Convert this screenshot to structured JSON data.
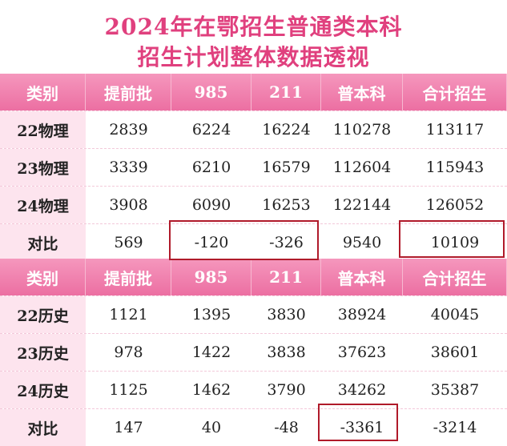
{
  "title": {
    "line1": "2024年在鄂招生普通类本科",
    "line2": "招生计划整体数据透视"
  },
  "table_physics": {
    "headers": [
      "类别",
      "提前批",
      "985",
      "211",
      "普本科",
      "合计招生"
    ],
    "rows": [
      [
        "22物理",
        "2839",
        "6224",
        "16224",
        "110278",
        "113117"
      ],
      [
        "23物理",
        "3339",
        "6210",
        "16579",
        "112604",
        "115943"
      ],
      [
        "24物理",
        "3908",
        "6090",
        "16253",
        "122144",
        "126052"
      ],
      [
        "对比",
        "569",
        "-120",
        "-326",
        "9540",
        "10109"
      ]
    ]
  },
  "table_history": {
    "headers": [
      "类别",
      "提前批",
      "985",
      "211",
      "普本科",
      "合计招生"
    ],
    "rows": [
      [
        "22历史",
        "1121",
        "1395",
        "3830",
        "38924",
        "40045"
      ],
      [
        "23历史",
        "978",
        "1422",
        "3838",
        "37623",
        "38601"
      ],
      [
        "24历史",
        "1125",
        "1462",
        "3790",
        "34262",
        "35387"
      ],
      [
        "对比",
        "147",
        "40",
        "-48",
        "-3361",
        "-3214"
      ]
    ]
  },
  "colors": {
    "title": "#e0407e",
    "header_bg": "#ec6fa2",
    "first_col_bg": "#fde4ee",
    "highlight_border": "#b01a2a"
  }
}
